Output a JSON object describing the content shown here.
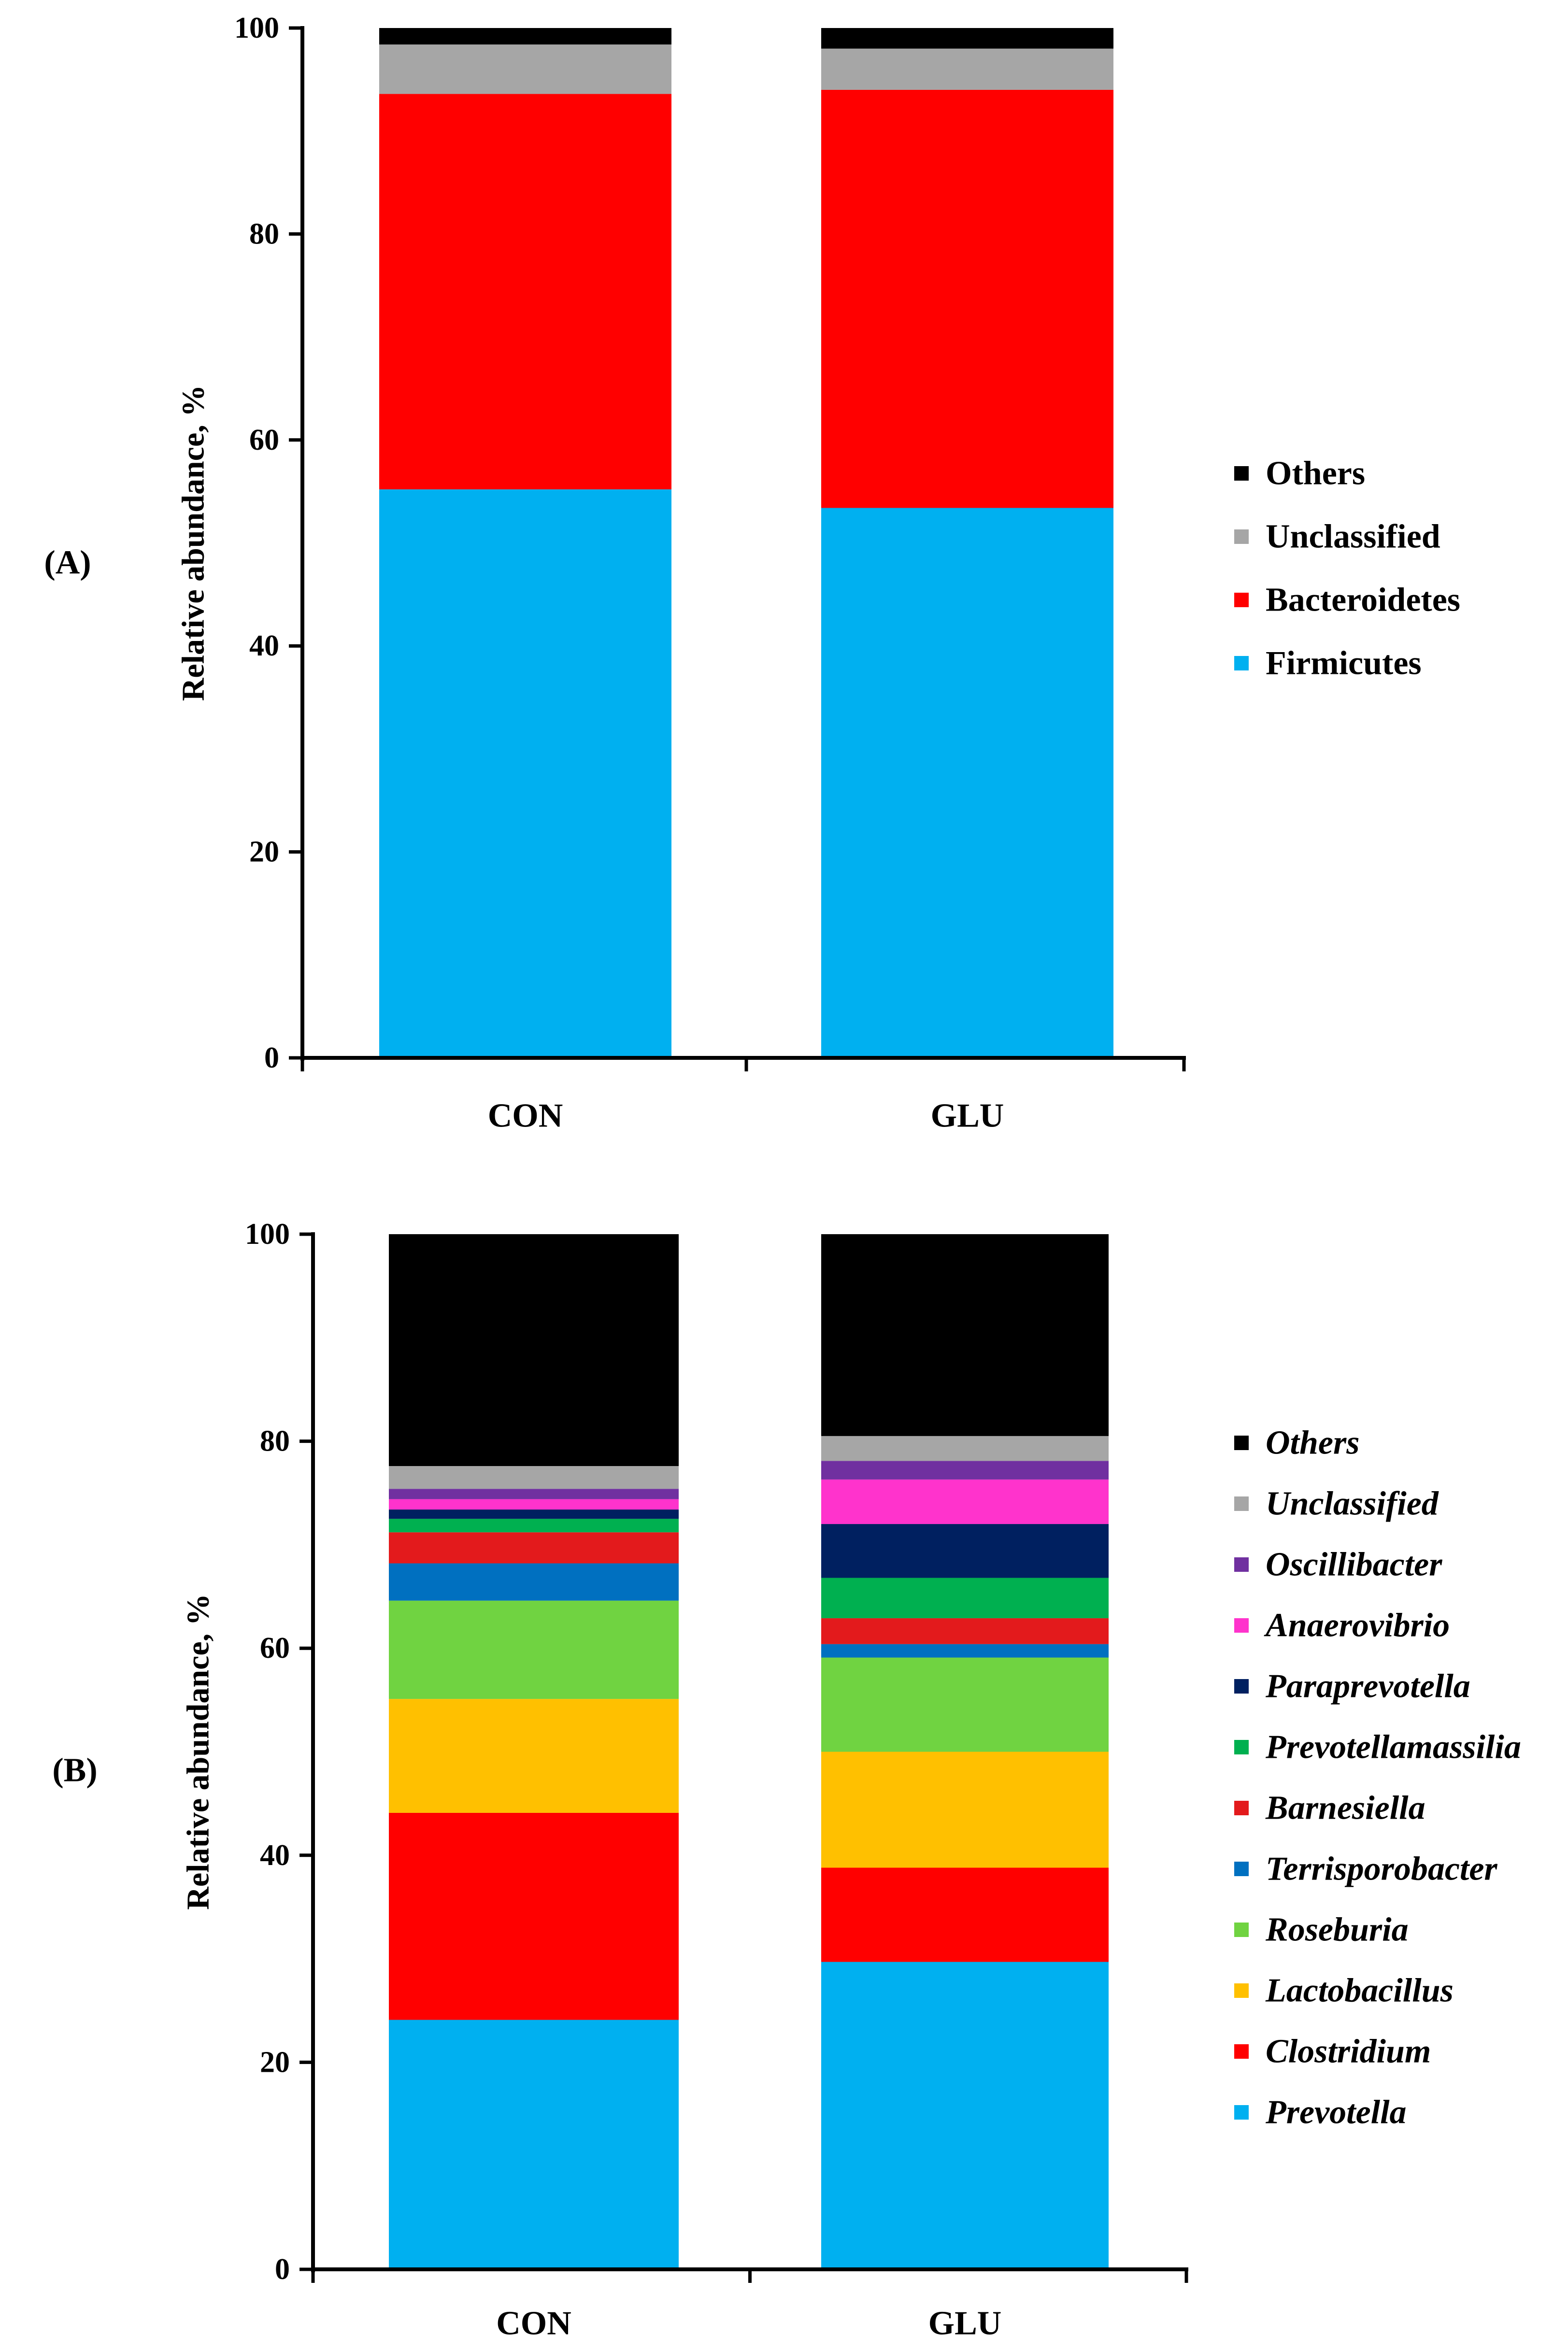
{
  "chart_data": [
    {
      "type": "bar",
      "stacked": true,
      "panel_label": "(A)",
      "ylabel": "Relative abundance, %",
      "ylim": [
        0,
        100
      ],
      "yticks": [
        0,
        20,
        40,
        60,
        80,
        100
      ],
      "categories": [
        "CON",
        "GLU"
      ],
      "legend_position": "right",
      "legend_italic": false,
      "series": [
        {
          "name": "Firmicutes",
          "color": "#00B0F0",
          "values": [
            55.2,
            53.4
          ]
        },
        {
          "name": "Bacteroidetes",
          "color": "#FF0000",
          "values": [
            38.4,
            40.6
          ]
        },
        {
          "name": "Unclassified",
          "color": "#A6A6A6",
          "values": [
            4.8,
            4.0
          ]
        },
        {
          "name": "Others",
          "color": "#000000",
          "values": [
            1.6,
            2.0
          ]
        }
      ]
    },
    {
      "type": "bar",
      "stacked": true,
      "panel_label": "(B)",
      "ylabel": "Relative abundance, %",
      "ylim": [
        0,
        100
      ],
      "yticks": [
        0,
        20,
        40,
        60,
        80,
        100
      ],
      "categories": [
        "CON",
        "GLU"
      ],
      "legend_position": "right",
      "legend_italic": true,
      "series": [
        {
          "name": "Prevotella",
          "color": "#00B0F0",
          "values": [
            24.1,
            29.7
          ]
        },
        {
          "name": "Clostridium",
          "color": "#FF0000",
          "values": [
            20.0,
            9.1
          ]
        },
        {
          "name": "Lactobacillus",
          "color": "#FFC000",
          "values": [
            11.0,
            11.2
          ]
        },
        {
          "name": "Roseburia",
          "color": "#70D341",
          "values": [
            9.5,
            9.1
          ]
        },
        {
          "name": "Terrisporobacter",
          "color": "#0070C0",
          "values": [
            3.6,
            1.3
          ]
        },
        {
          "name": "Barnesiella",
          "color": "#E31A1C",
          "values": [
            3.0,
            2.5
          ]
        },
        {
          "name": "Prevotellamassilia",
          "color": "#00B050",
          "values": [
            1.3,
            3.9
          ]
        },
        {
          "name": "Paraprevotella",
          "color": "#002060",
          "values": [
            0.9,
            5.2
          ]
        },
        {
          "name": "Anaerovibrio",
          "color": "#FF33CC",
          "values": [
            1.0,
            4.3
          ]
        },
        {
          "name": "Oscillibacter",
          "color": "#7030A0",
          "values": [
            1.0,
            1.8
          ]
        },
        {
          "name": "Unclassified",
          "color": "#A6A6A6",
          "values": [
            2.2,
            2.4
          ]
        },
        {
          "name": "Others",
          "color": "#000000",
          "values": [
            22.4,
            19.5
          ]
        }
      ]
    }
  ]
}
